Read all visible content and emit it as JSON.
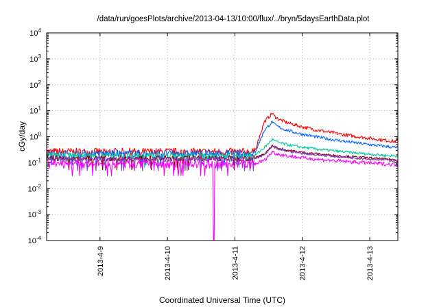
{
  "chart_data": {
    "type": "line",
    "title": "/data/run/goesPlots/archive/2013-04-13/10:00/flux/../bryn/5daysEarthData.plot",
    "xlabel": "Coordinated Universal Time (UTC)",
    "ylabel": "cGy/day",
    "y_scale": "log",
    "ylim": [
      0.0001,
      10000
    ],
    "y_ticks": [
      {
        "base": "10",
        "exp": "-4"
      },
      {
        "base": "10",
        "exp": "-3"
      },
      {
        "base": "10",
        "exp": "-2"
      },
      {
        "base": "10",
        "exp": "-1"
      },
      {
        "base": "10",
        "exp": "0"
      },
      {
        "base": "10",
        "exp": "1"
      },
      {
        "base": "10",
        "exp": "2"
      },
      {
        "base": "10",
        "exp": "3"
      },
      {
        "base": "10",
        "exp": "4"
      }
    ],
    "xlim": [
      "2013-04-08T05:00",
      "2013-04-13T10:00"
    ],
    "x_ticks": [
      "2013-4-9",
      "2013-4-10",
      "2013-4-11",
      "2013-4-12",
      "2013-4-13"
    ],
    "grid": true,
    "legend": "none",
    "series": [
      {
        "color": "#ff0000",
        "baseline": 0.27,
        "noise": 0.5,
        "peak": 8.5,
        "end": 0.65
      },
      {
        "color": "#0066ff",
        "baseline": 0.23,
        "noise": 0.45,
        "peak": 4.0,
        "end": 0.38
      },
      {
        "color": "#00c8a0",
        "baseline": 0.19,
        "noise": 0.4,
        "peak": 0.85,
        "end": 0.18
      },
      {
        "color": "#8b0000",
        "baseline": 0.15,
        "noise": 0.35,
        "peak": 0.48,
        "end": 0.13
      },
      {
        "color": "#7d3cbe",
        "baseline": 0.14,
        "noise": 0.35,
        "peak": 0.44,
        "end": 0.12
      },
      {
        "color": "#ff00ff",
        "baseline": 0.09,
        "noise": 0.55,
        "peak": 0.28,
        "end": 0.085,
        "dropout": {
          "at": "2013-04-10T16:30",
          "to": 0.0001
        }
      }
    ],
    "event": {
      "rise_start": "2013-04-11T07:00",
      "rise_end": "2013-04-11T10:30",
      "peak": "2013-04-11T13:30"
    }
  }
}
